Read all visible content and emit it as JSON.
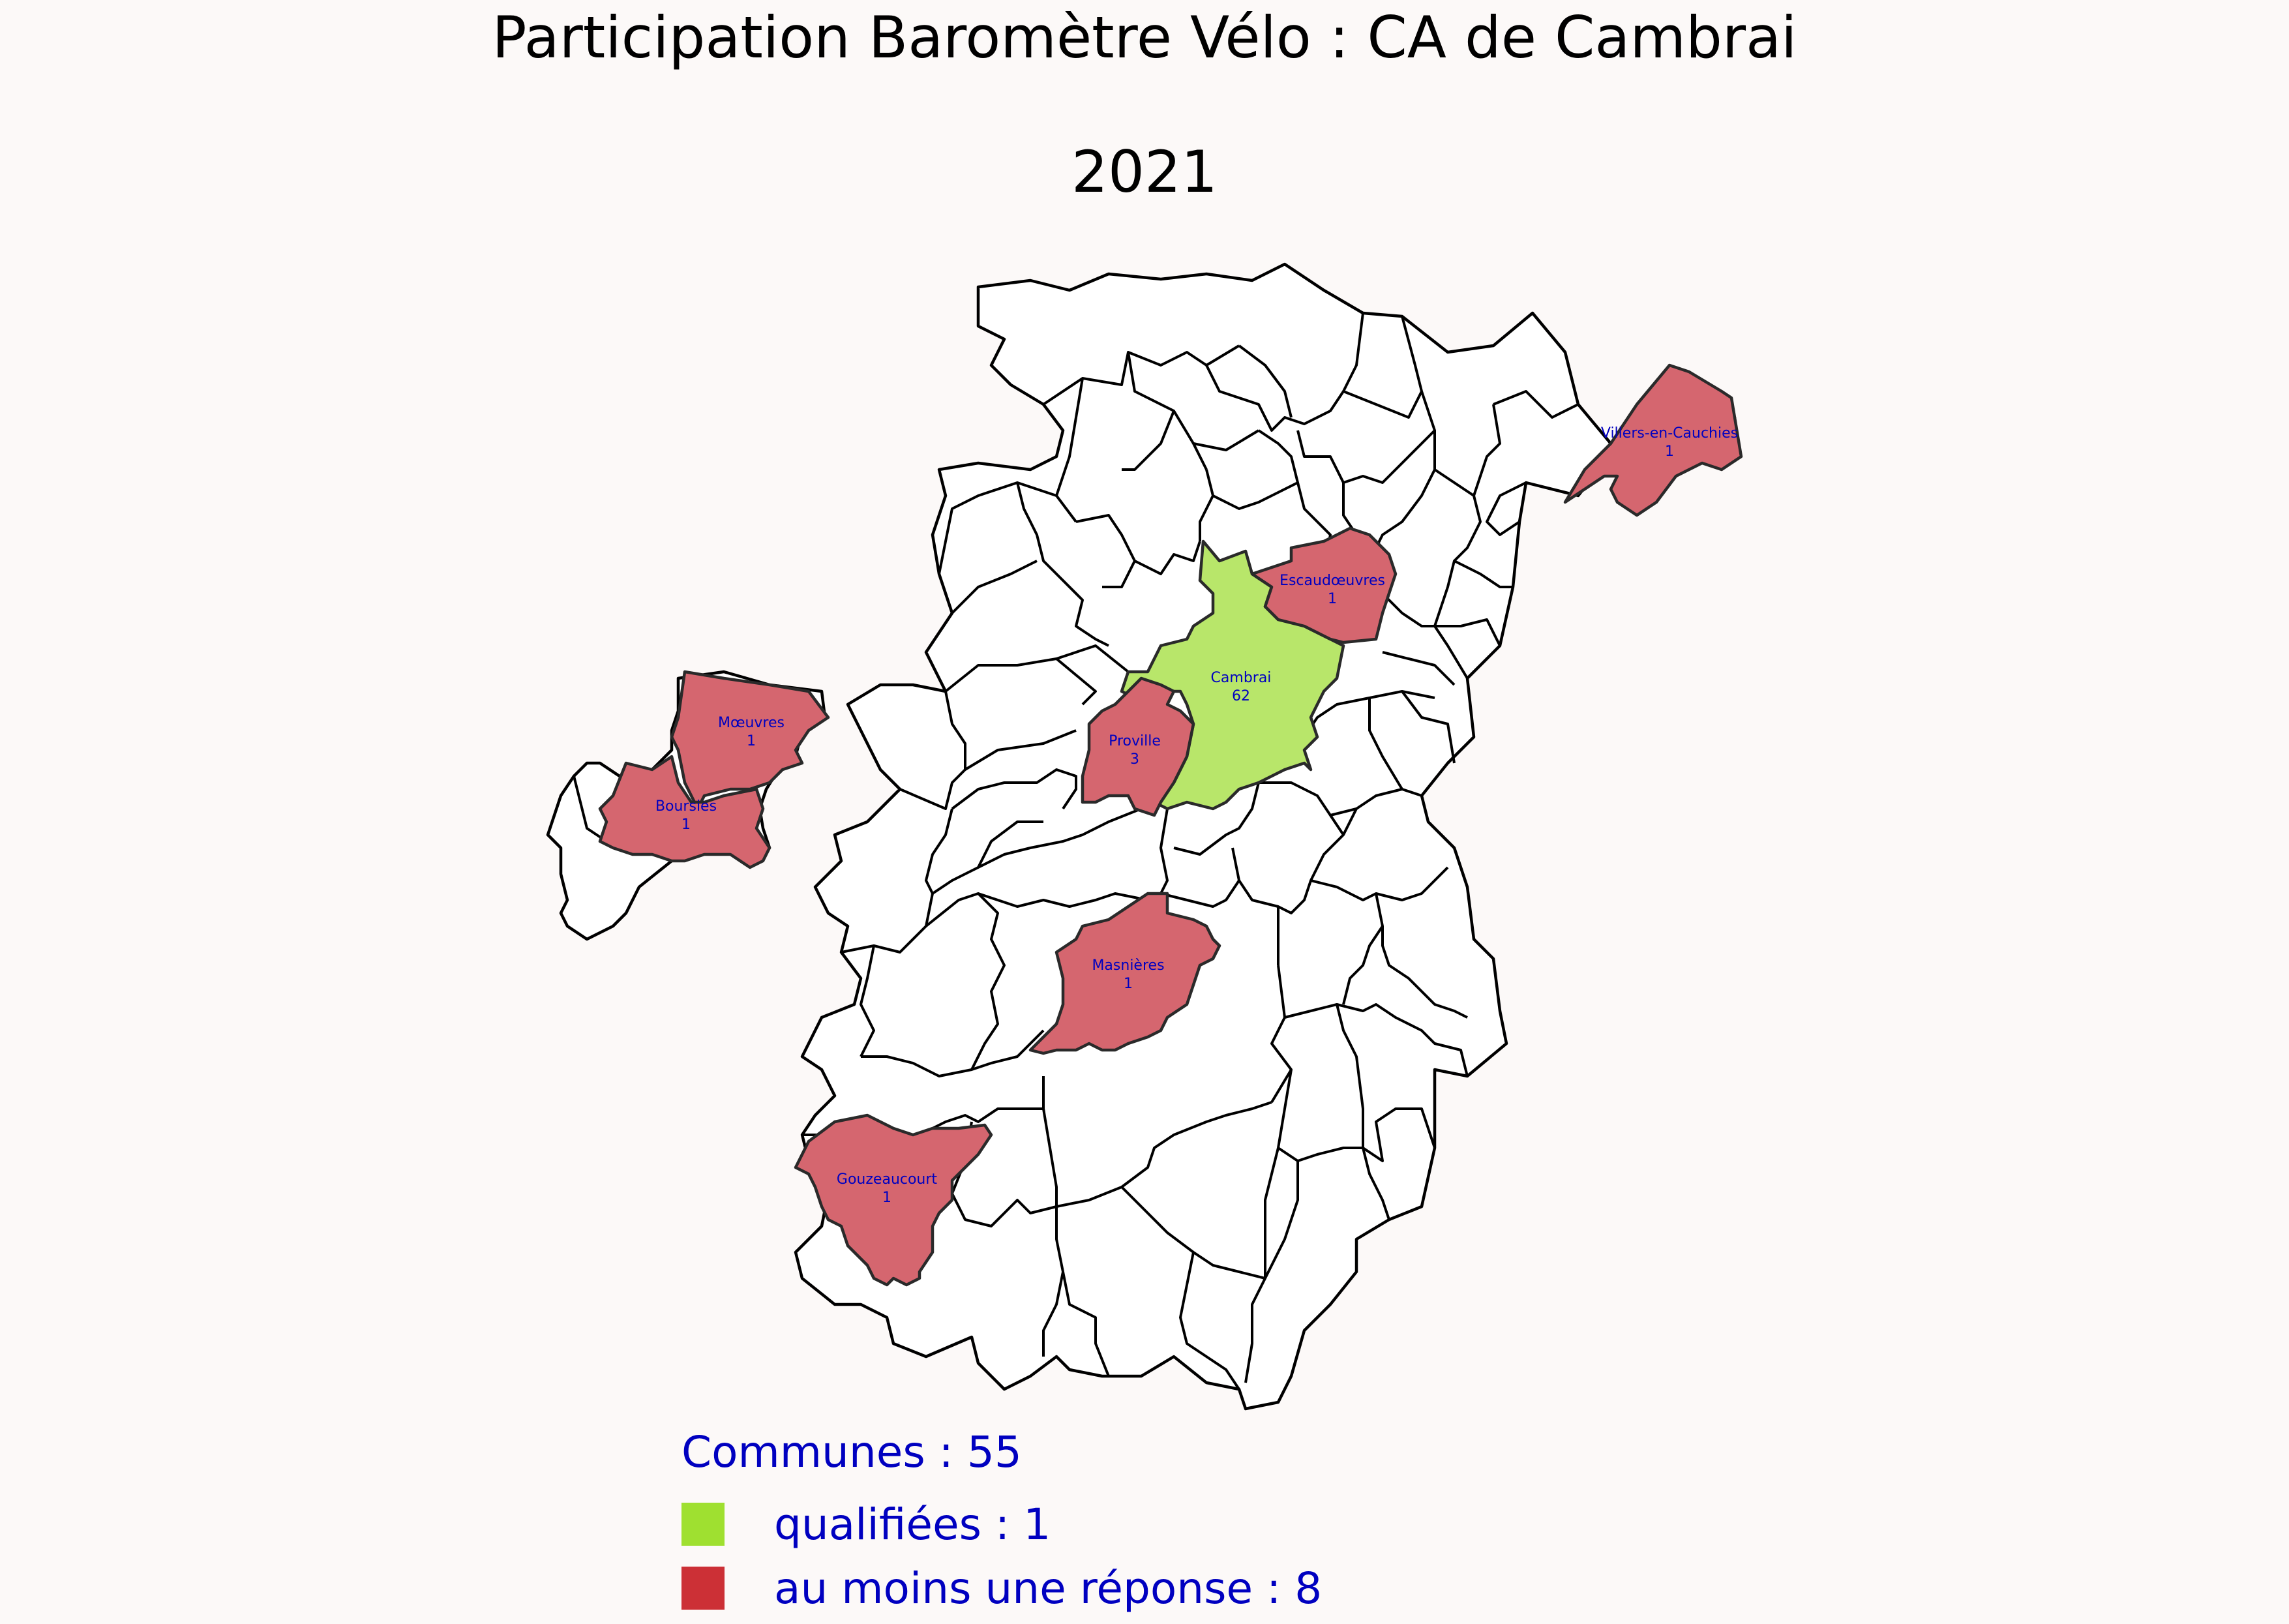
{
  "title": "Participation Baromètre Vélo : CA de Cambrai",
  "subtitle": "2021",
  "colors": {
    "background": "#fcf9f8",
    "qualified": "#b8e66a",
    "response": "#d5666f",
    "none": "#ffffff",
    "label": "#0000c0"
  },
  "legend": {
    "total": "Communes : 55",
    "qualified": {
      "label": "qualifiées : 1",
      "color": "#9fe030"
    },
    "response": {
      "label": "au moins une réponse : 8",
      "color": "#cc3036"
    }
  },
  "communes": [
    {
      "name": "Cambrai",
      "count": "62",
      "status": "qualified"
    },
    {
      "name": "Escaudœuvres",
      "count": "1",
      "status": "response"
    },
    {
      "name": "Villers-en-Cauchies",
      "count": "1",
      "status": "response"
    },
    {
      "name": "Proville",
      "count": "3",
      "status": "response"
    },
    {
      "name": "Mœuvres",
      "count": "1",
      "status": "response"
    },
    {
      "name": "Boursies",
      "count": "1",
      "status": "response"
    },
    {
      "name": "Masnières",
      "count": "1",
      "status": "response"
    },
    {
      "name": "Gouzeaucourt",
      "count": "1",
      "status": "response"
    }
  ]
}
